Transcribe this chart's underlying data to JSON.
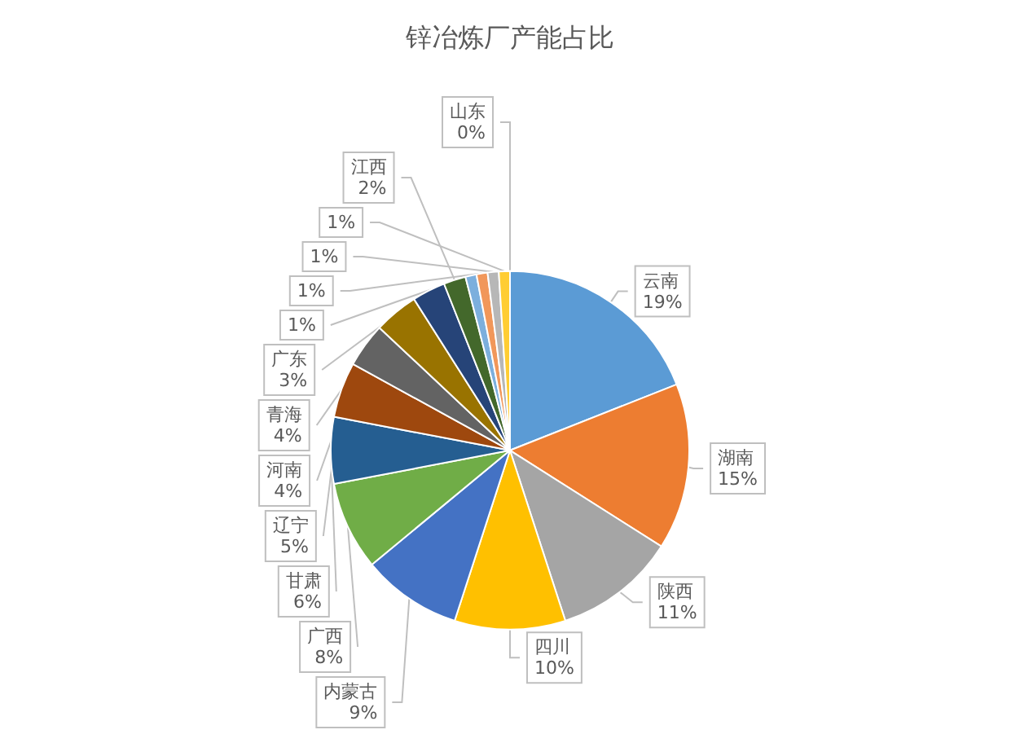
{
  "chart_data": {
    "type": "pie",
    "title": "锌冶炼厂产能占比",
    "categories": [
      "云南",
      "湖南",
      "陕西",
      "四川",
      "内蒙古",
      "广西",
      "甘肃",
      "辽宁",
      "河南",
      "青海",
      "广东",
      "江西",
      null,
      null,
      null,
      null,
      "山东"
    ],
    "values": [
      19,
      15,
      11,
      10,
      9,
      8,
      6,
      5,
      4,
      4,
      3,
      2,
      1,
      1,
      1,
      1,
      0
    ],
    "colors": [
      "#5b9bd5",
      "#ed7d31",
      "#a5a5a5",
      "#ffc000",
      "#4472c4",
      "#70ad47",
      "#255e91",
      "#9e480e",
      "#636363",
      "#997300",
      "#264478",
      "#43682b",
      "#7cafdd",
      "#f1975a",
      "#b7b7b7",
      "#ffcd33",
      "#698ed0"
    ],
    "value_labels": [
      "19%",
      "15%",
      "11%",
      "10%",
      "9%",
      "8%",
      "6%",
      "5%",
      "4%",
      "4%",
      "3%",
      "2%",
      "1%",
      "1%",
      "1%",
      "1%",
      "0%"
    ],
    "legend": false
  }
}
